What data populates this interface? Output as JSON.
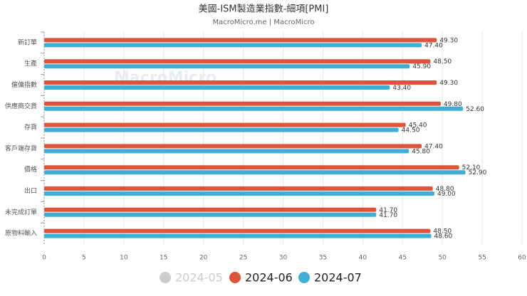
{
  "chart_data": {
    "type": "hbar",
    "title": "美國-ISM製造業指數-細項[PMI]",
    "subtitle": "MacroMicro.me | MacroMicro",
    "watermark": "MacroMicro",
    "categories": [
      "新訂單",
      "生產",
      "僱傭指數",
      "供應商交貨",
      "存貨",
      "客戶端存貨",
      "價格",
      "出口",
      "未完成訂單",
      "原物料輸入"
    ],
    "series": [
      {
        "name": "2024-05",
        "color": "#cccccc",
        "visible": false,
        "values": [
          null,
          null,
          null,
          null,
          null,
          null,
          null,
          null,
          null,
          null
        ]
      },
      {
        "name": "2024-06",
        "color": "#e0533b",
        "visible": true,
        "values": [
          49.3,
          48.5,
          49.3,
          49.8,
          45.4,
          47.4,
          52.1,
          48.8,
          41.7,
          48.5
        ],
        "value_labels": [
          "49.30",
          "48.50",
          "49.30",
          "49.80",
          "45.40",
          "47.40",
          "52.10",
          "48.80",
          "41.70",
          "48.50"
        ]
      },
      {
        "name": "2024-07",
        "color": "#3eaed6",
        "visible": true,
        "values": [
          47.4,
          45.9,
          43.4,
          52.6,
          44.5,
          45.8,
          52.9,
          49.0,
          41.7,
          48.6
        ],
        "value_labels": [
          "47.40",
          "45.90",
          "43.40",
          "52.60",
          "44.50",
          "45.80",
          "52.90",
          "49.00",
          "41.70",
          "48.60"
        ]
      }
    ],
    "xlim": [
      0,
      60
    ],
    "xticks": [
      0,
      5,
      10,
      15,
      20,
      25,
      30,
      35,
      40,
      45,
      50,
      55,
      60
    ],
    "grid": true
  }
}
